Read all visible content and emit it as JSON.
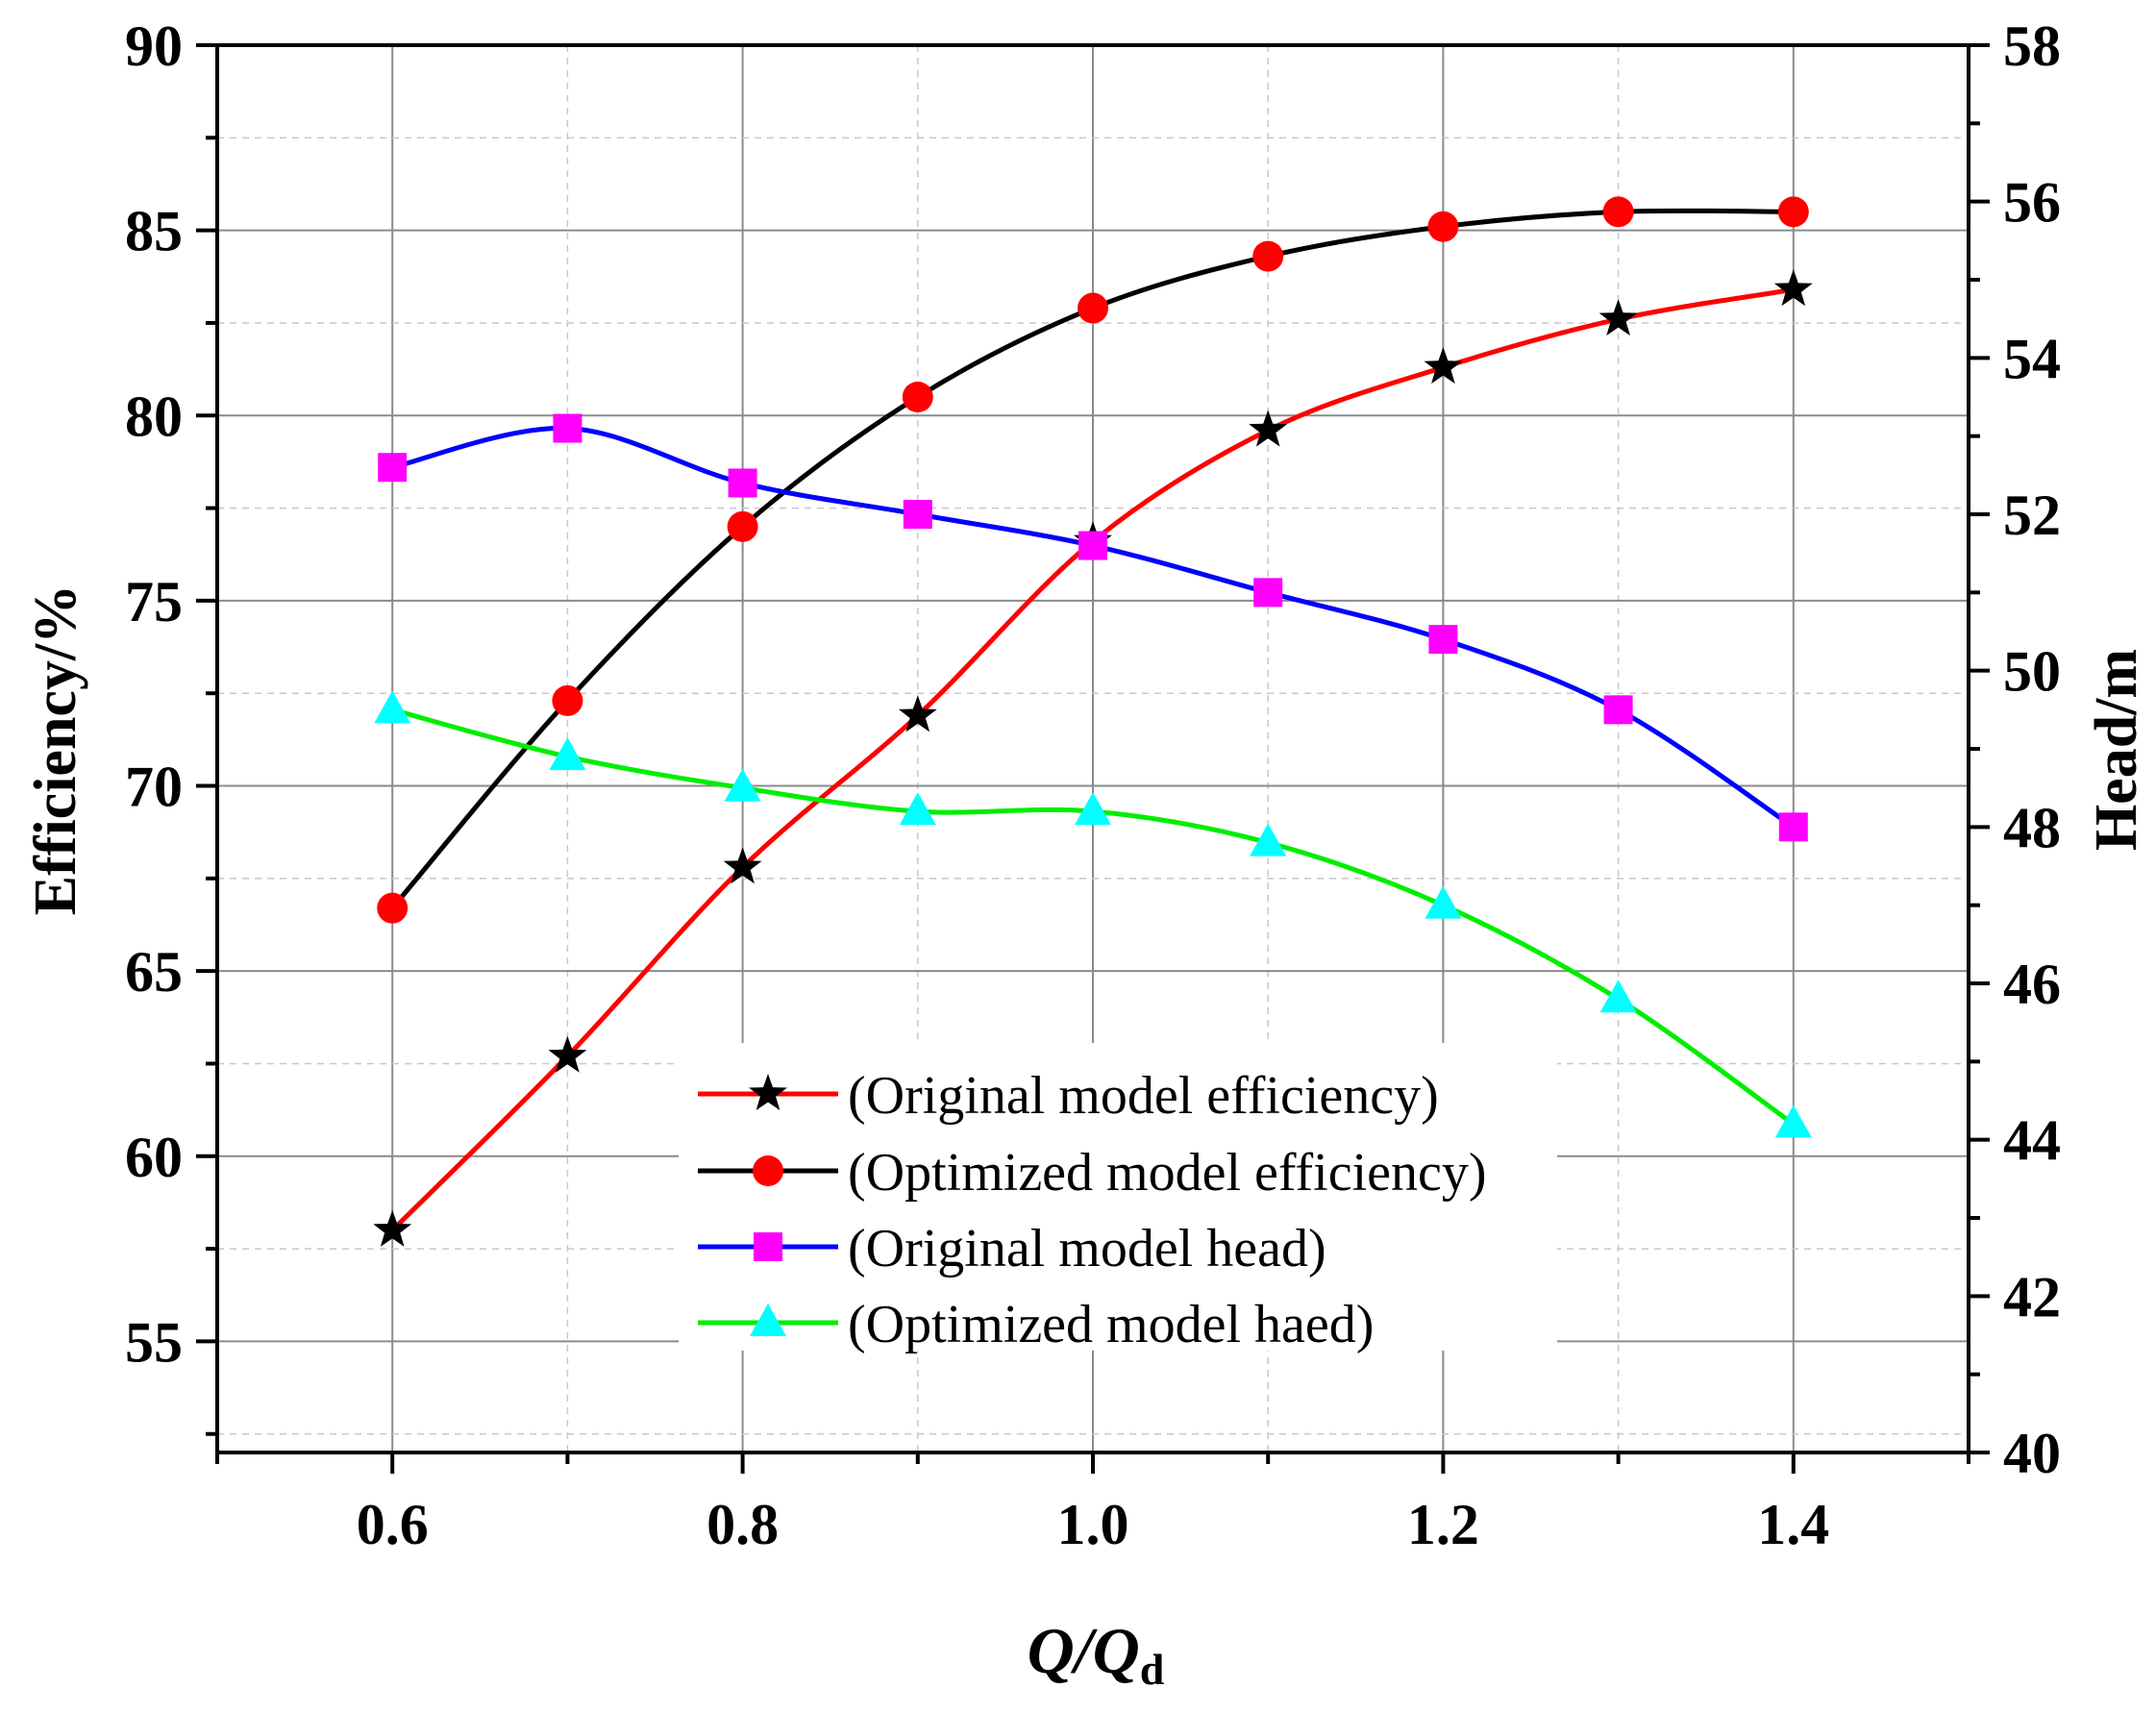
{
  "chart_data": {
    "type": "line",
    "title": "",
    "x": [
      0.6,
      0.7,
      0.8,
      0.9,
      1.0,
      1.1,
      1.2,
      1.3,
      1.4
    ],
    "xlim": [
      0.5,
      1.5
    ],
    "x_ticks": [
      "0.6",
      "0.8",
      "1.0",
      "1.2",
      "1.4"
    ],
    "xlabel": {
      "main": "Q/Q",
      "sub": "d"
    },
    "ylabel_left": "Efficiency/%",
    "ylabel_right": "Head/m",
    "ylim_left": [
      52,
      90
    ],
    "ylim_right": [
      40,
      58
    ],
    "y_ticks_left": [
      "55",
      "60",
      "65",
      "70",
      "75",
      "80",
      "85",
      "90"
    ],
    "y_ticks_right": [
      "40",
      "42",
      "44",
      "46",
      "48",
      "50",
      "52",
      "54",
      "56",
      "58"
    ],
    "grid": true,
    "legend_position": "lower-center",
    "series": [
      {
        "name": "(Original model efficiency)",
        "axis": "left",
        "line_color": "#ff0000",
        "marker": "star",
        "marker_color": "#000000",
        "values": [
          58.0,
          62.7,
          67.8,
          71.9,
          76.6,
          79.6,
          81.3,
          82.6,
          83.4
        ]
      },
      {
        "name": "(Optimized model efficiency)",
        "axis": "left",
        "line_color": "#000000",
        "marker": "circle",
        "marker_color": "#ff0000",
        "values": [
          66.7,
          72.3,
          77.0,
          80.5,
          82.9,
          84.3,
          85.1,
          85.5,
          85.5
        ]
      },
      {
        "name": "(Original model head)",
        "axis": "right",
        "line_color": "#0000ff",
        "marker": "square",
        "marker_color": "#ff00ff",
        "values": [
          52.6,
          53.1,
          52.4,
          52.0,
          51.6,
          51.0,
          50.4,
          49.5,
          48.0
        ]
      },
      {
        "name": "(Optimized model haed)",
        "axis": "right",
        "line_color": "#00ee00",
        "marker": "triangle",
        "marker_color": "#00ffff",
        "values": [
          49.5,
          48.9,
          48.5,
          48.2,
          48.2,
          47.8,
          47.0,
          45.8,
          44.2
        ]
      }
    ]
  }
}
